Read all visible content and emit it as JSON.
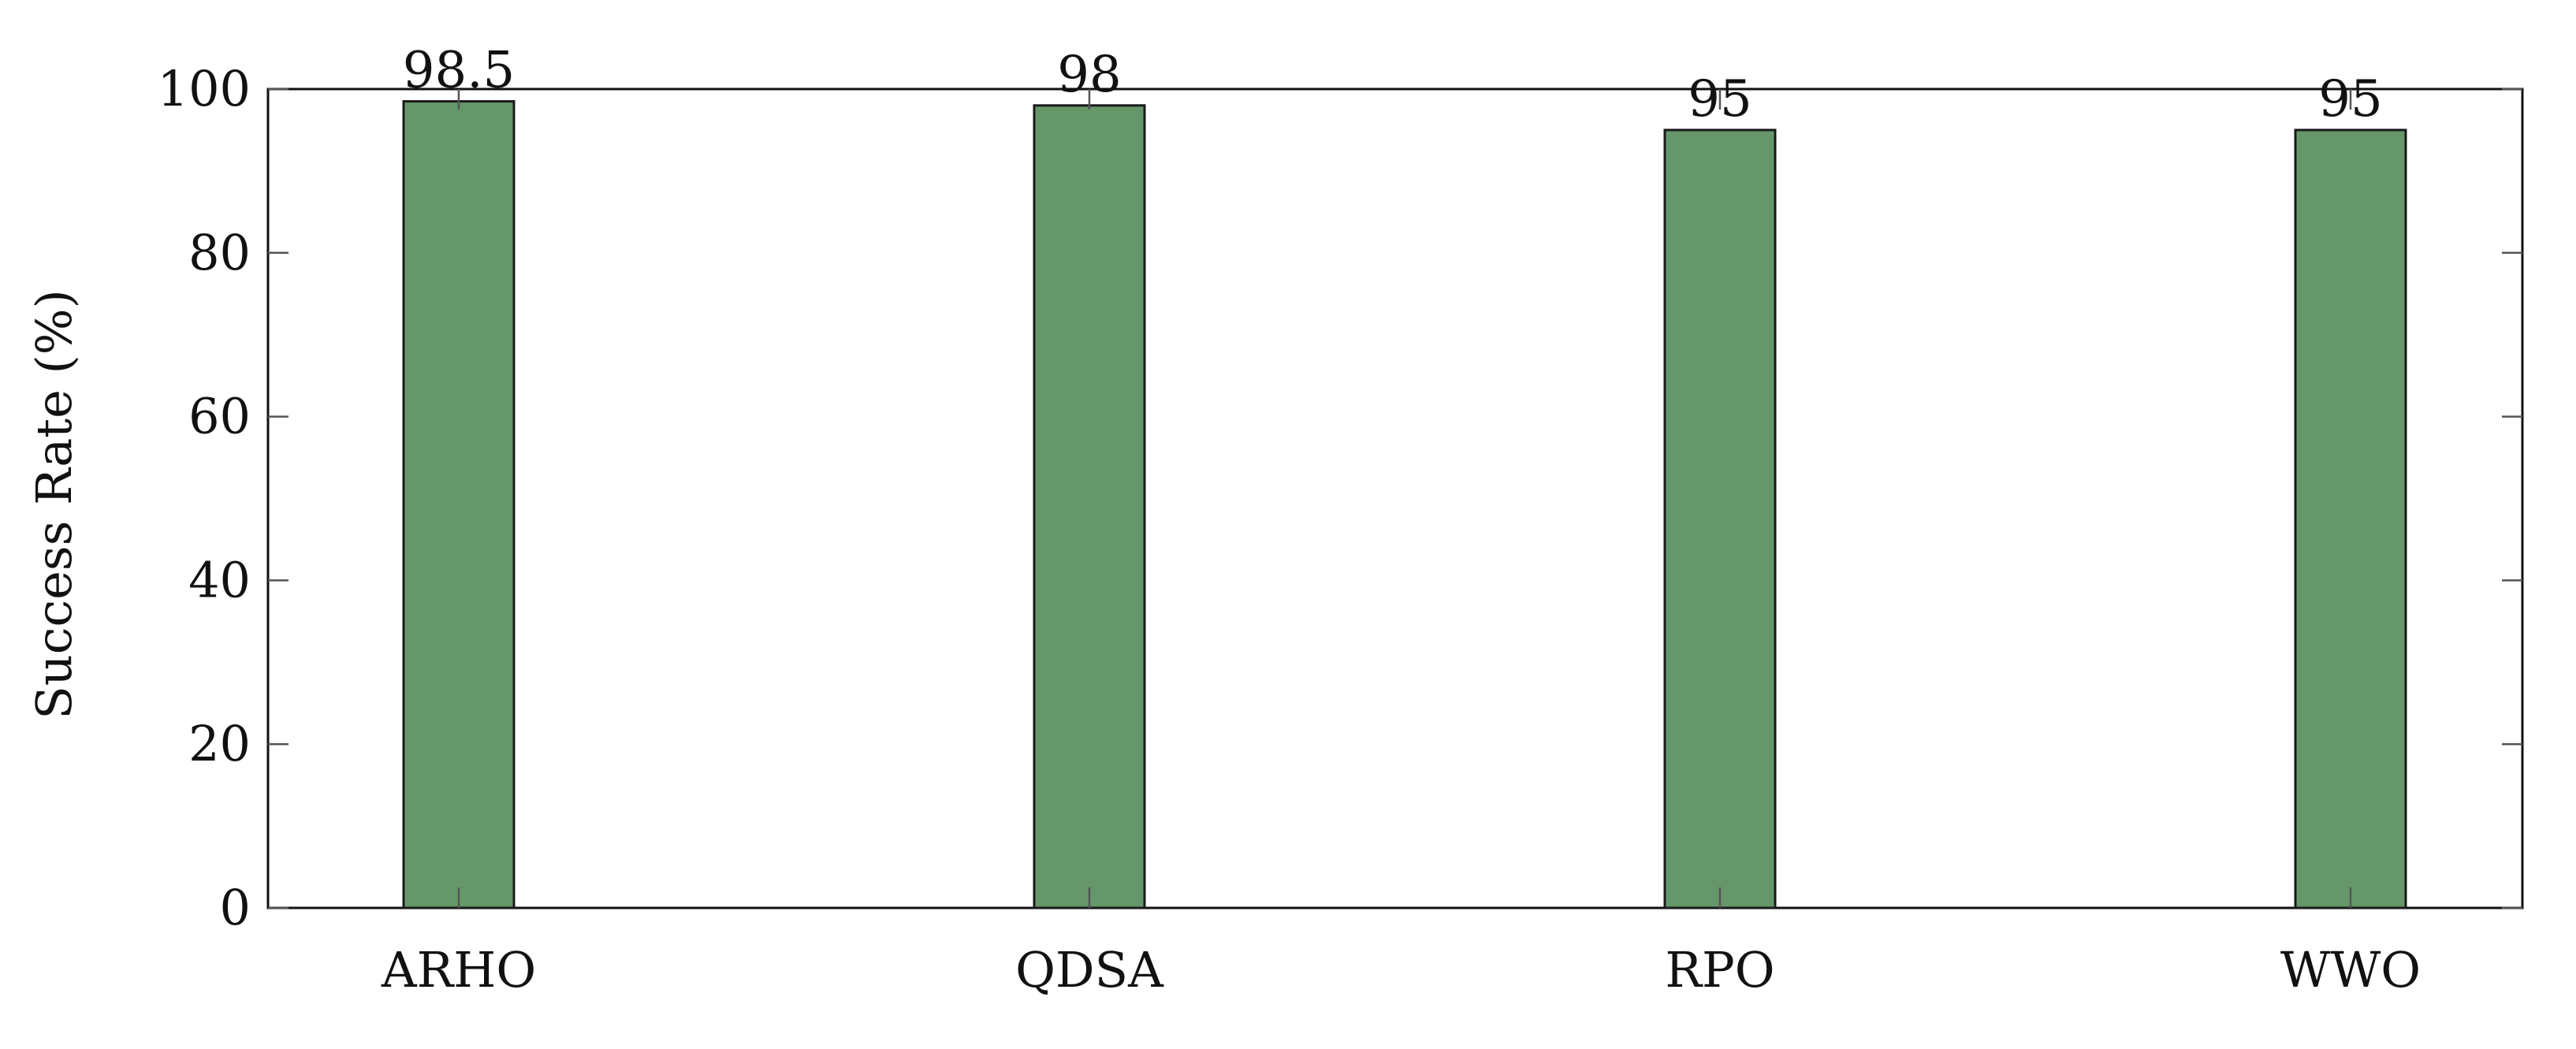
{
  "chart_data": {
    "type": "bar",
    "title": "",
    "xlabel": "",
    "ylabel": "Success Rate (%)",
    "categories": [
      "ARHO",
      "QDSA",
      "RPO",
      "WWO"
    ],
    "values": [
      98.5,
      98,
      95,
      95
    ],
    "data_labels": [
      "98.5",
      "98",
      "95",
      "95"
    ],
    "ylim": [
      0,
      100
    ],
    "yticks": [
      0,
      20,
      40,
      60,
      80,
      100
    ],
    "ytick_labels": [
      "0",
      "20",
      "40",
      "60",
      "80",
      "100"
    ],
    "grid": false,
    "legend": "none",
    "bar_color": "#66976a",
    "bar_edge_color": "#1a1a1a",
    "axis_color": "#111111"
  }
}
